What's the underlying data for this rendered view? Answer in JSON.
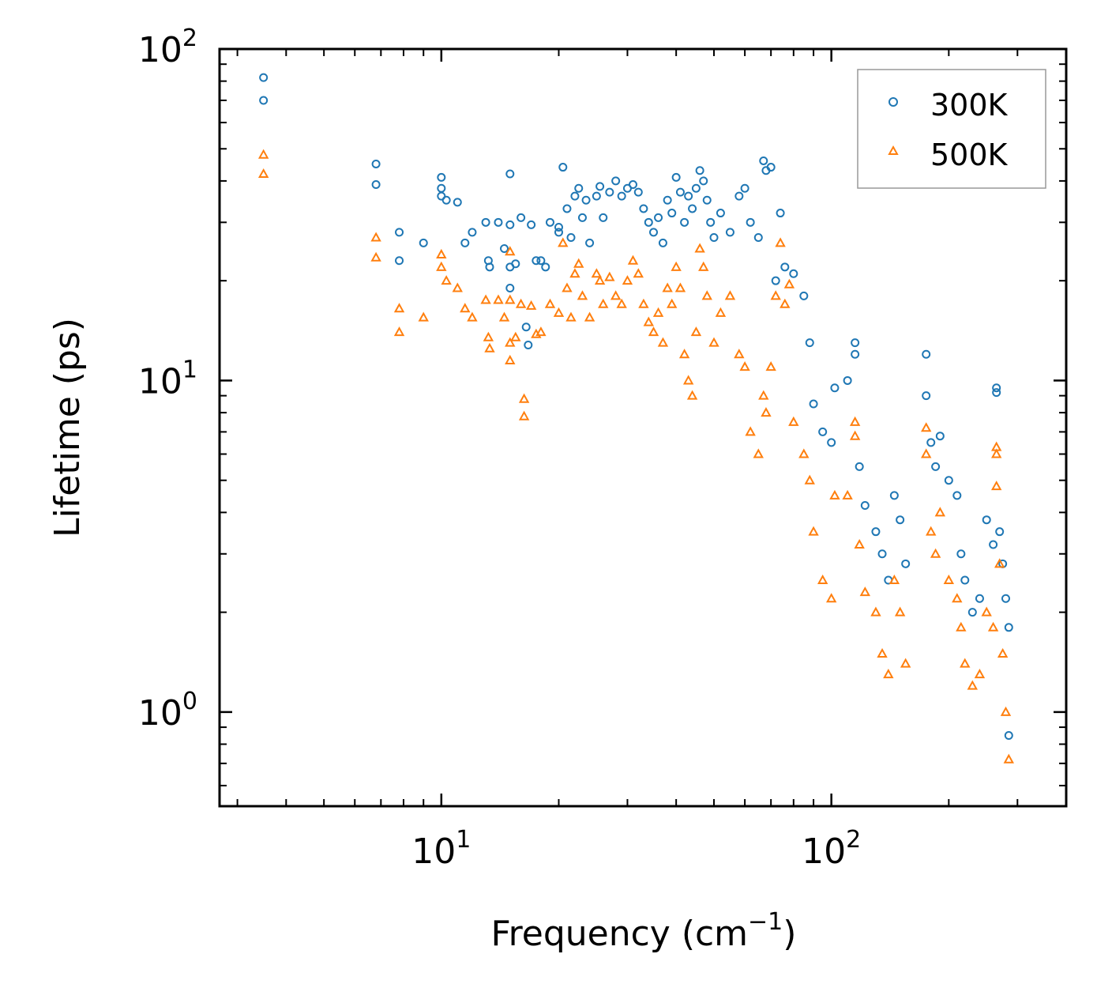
{
  "chart_data": {
    "type": "scatter",
    "title": "",
    "xlabel": "Frequency (cm",
    "xlabel_sup": "−1",
    "xlabel_tail": ")",
    "ylabel": "Lifetime (ps)",
    "xscale": "log",
    "yscale": "log",
    "xlim": [
      2.7,
      400
    ],
    "ylim": [
      0.52,
      100
    ],
    "x_ticks": [
      {
        "value": 10,
        "base": "10",
        "exp": "1"
      },
      {
        "value": 100,
        "base": "10",
        "exp": "2"
      }
    ],
    "y_ticks": [
      {
        "value": 1,
        "base": "10",
        "exp": "0"
      },
      {
        "value": 10,
        "base": "10",
        "exp": "1"
      },
      {
        "value": 100,
        "base": "10",
        "exp": "2"
      }
    ],
    "legend": {
      "position": "top-right"
    },
    "series": [
      {
        "name": "300K",
        "marker": "circle",
        "color": "#1f77b4",
        "points": [
          [
            3.5,
            82
          ],
          [
            3.5,
            70
          ],
          [
            6.8,
            45
          ],
          [
            6.8,
            39
          ],
          [
            7.8,
            28
          ],
          [
            7.8,
            23
          ],
          [
            9,
            26
          ],
          [
            10,
            41
          ],
          [
            10,
            38
          ],
          [
            10,
            36
          ],
          [
            10.3,
            35
          ],
          [
            11,
            34.5
          ],
          [
            11.5,
            26
          ],
          [
            12,
            28
          ],
          [
            13,
            30
          ],
          [
            13.2,
            23
          ],
          [
            13.3,
            22
          ],
          [
            14,
            30
          ],
          [
            14.5,
            25
          ],
          [
            15,
            42
          ],
          [
            15,
            29.5
          ],
          [
            15,
            22
          ],
          [
            15,
            19
          ],
          [
            15.5,
            22.5
          ],
          [
            16,
            31
          ],
          [
            16.5,
            14.5
          ],
          [
            16.7,
            12.8
          ],
          [
            17,
            29.5
          ],
          [
            17.5,
            23
          ],
          [
            18,
            23
          ],
          [
            18.5,
            22
          ],
          [
            19,
            30
          ],
          [
            20,
            29
          ],
          [
            20,
            28
          ],
          [
            20.5,
            44
          ],
          [
            21,
            33
          ],
          [
            21.5,
            27
          ],
          [
            22,
            36
          ],
          [
            22.5,
            38
          ],
          [
            23,
            31
          ],
          [
            23.5,
            35
          ],
          [
            24,
            26
          ],
          [
            25,
            36
          ],
          [
            25.5,
            38.5
          ],
          [
            26,
            31
          ],
          [
            27,
            37
          ],
          [
            28,
            40
          ],
          [
            29,
            36
          ],
          [
            30,
            38
          ],
          [
            31,
            39
          ],
          [
            32,
            37
          ],
          [
            33,
            33
          ],
          [
            34,
            30
          ],
          [
            35,
            28
          ],
          [
            36,
            31
          ],
          [
            37,
            26
          ],
          [
            38,
            35
          ],
          [
            39,
            32
          ],
          [
            40,
            41
          ],
          [
            41,
            37
          ],
          [
            42,
            30
          ],
          [
            43,
            36
          ],
          [
            44,
            33
          ],
          [
            45,
            38
          ],
          [
            46,
            43
          ],
          [
            47,
            40
          ],
          [
            48,
            35
          ],
          [
            49,
            30
          ],
          [
            50,
            27
          ],
          [
            52,
            32
          ],
          [
            55,
            28
          ],
          [
            58,
            36
          ],
          [
            60,
            38
          ],
          [
            62,
            30
          ],
          [
            65,
            27
          ],
          [
            67,
            46
          ],
          [
            68,
            43
          ],
          [
            70,
            44
          ],
          [
            72,
            20
          ],
          [
            74,
            32
          ],
          [
            76,
            22
          ],
          [
            80,
            21
          ],
          [
            85,
            18
          ],
          [
            88,
            13
          ],
          [
            90,
            8.5
          ],
          [
            95,
            7
          ],
          [
            100,
            6.5
          ],
          [
            102,
            9.5
          ],
          [
            110,
            10
          ],
          [
            115,
            13
          ],
          [
            115,
            12
          ],
          [
            118,
            5.5
          ],
          [
            122,
            4.2
          ],
          [
            130,
            3.5
          ],
          [
            135,
            3.0
          ],
          [
            140,
            2.5
          ],
          [
            145,
            4.5
          ],
          [
            150,
            3.8
          ],
          [
            155,
            2.8
          ],
          [
            175,
            12
          ],
          [
            175,
            9
          ],
          [
            180,
            6.5
          ],
          [
            185,
            5.5
          ],
          [
            190,
            6.8
          ],
          [
            200,
            5
          ],
          [
            210,
            4.5
          ],
          [
            215,
            3
          ],
          [
            220,
            2.5
          ],
          [
            230,
            2.0
          ],
          [
            240,
            2.2
          ],
          [
            250,
            3.8
          ],
          [
            260,
            3.2
          ],
          [
            265,
            9.5
          ],
          [
            265,
            9.2
          ],
          [
            270,
            3.5
          ],
          [
            275,
            2.8
          ],
          [
            280,
            2.2
          ],
          [
            285,
            1.8
          ],
          [
            285,
            0.85
          ]
        ]
      },
      {
        "name": "500K",
        "marker": "triangle",
        "color": "#ff7f0e",
        "points": [
          [
            3.5,
            48
          ],
          [
            3.5,
            42
          ],
          [
            6.8,
            27
          ],
          [
            6.8,
            23.5
          ],
          [
            7.8,
            16.5
          ],
          [
            7.8,
            14
          ],
          [
            9,
            15.5
          ],
          [
            10,
            24
          ],
          [
            10,
            22
          ],
          [
            10.3,
            20
          ],
          [
            11,
            19
          ],
          [
            11.5,
            16.5
          ],
          [
            12,
            15.5
          ],
          [
            13,
            17.5
          ],
          [
            13.2,
            13.5
          ],
          [
            13.3,
            12.5
          ],
          [
            14,
            17.5
          ],
          [
            14.5,
            15.5
          ],
          [
            15,
            24.5
          ],
          [
            15,
            17.5
          ],
          [
            15,
            13
          ],
          [
            15,
            11.5
          ],
          [
            15.5,
            13.5
          ],
          [
            16,
            17
          ],
          [
            16.3,
            8.8
          ],
          [
            16.3,
            7.8
          ],
          [
            17,
            16.8
          ],
          [
            17.5,
            13.8
          ],
          [
            18,
            14
          ],
          [
            19,
            17
          ],
          [
            20,
            16
          ],
          [
            20.5,
            26
          ],
          [
            21,
            19
          ],
          [
            21.5,
            15.5
          ],
          [
            22,
            21
          ],
          [
            22.5,
            22.5
          ],
          [
            23,
            18
          ],
          [
            24,
            15.5
          ],
          [
            25,
            21
          ],
          [
            25.5,
            20
          ],
          [
            26,
            17
          ],
          [
            27,
            20.5
          ],
          [
            28,
            18
          ],
          [
            29,
            17
          ],
          [
            30,
            20
          ],
          [
            31,
            23
          ],
          [
            32,
            21
          ],
          [
            33,
            17
          ],
          [
            34,
            15
          ],
          [
            35,
            14
          ],
          [
            36,
            16
          ],
          [
            37,
            13
          ],
          [
            38,
            19
          ],
          [
            39,
            17
          ],
          [
            40,
            22
          ],
          [
            41,
            19
          ],
          [
            42,
            12
          ],
          [
            43,
            10
          ],
          [
            44,
            9
          ],
          [
            45,
            14
          ],
          [
            46,
            25
          ],
          [
            47,
            22
          ],
          [
            48,
            18
          ],
          [
            50,
            13
          ],
          [
            52,
            16
          ],
          [
            55,
            18
          ],
          [
            58,
            12
          ],
          [
            60,
            11
          ],
          [
            62,
            7
          ],
          [
            65,
            6
          ],
          [
            67,
            9
          ],
          [
            68,
            8
          ],
          [
            70,
            11
          ],
          [
            72,
            18
          ],
          [
            74,
            26
          ],
          [
            76,
            17
          ],
          [
            78,
            19.5
          ],
          [
            80,
            7.5
          ],
          [
            85,
            6
          ],
          [
            88,
            5
          ],
          [
            90,
            3.5
          ],
          [
            95,
            2.5
          ],
          [
            100,
            2.2
          ],
          [
            102,
            4.5
          ],
          [
            110,
            4.5
          ],
          [
            115,
            7.5
          ],
          [
            115,
            6.8
          ],
          [
            118,
            3.2
          ],
          [
            122,
            2.3
          ],
          [
            130,
            2.0
          ],
          [
            135,
            1.5
          ],
          [
            140,
            1.3
          ],
          [
            145,
            2.5
          ],
          [
            150,
            2.0
          ],
          [
            155,
            1.4
          ],
          [
            175,
            7.2
          ],
          [
            175,
            6.0
          ],
          [
            180,
            3.5
          ],
          [
            185,
            3.0
          ],
          [
            190,
            4.0
          ],
          [
            200,
            2.5
          ],
          [
            210,
            2.2
          ],
          [
            215,
            1.8
          ],
          [
            220,
            1.4
          ],
          [
            230,
            1.2
          ],
          [
            240,
            1.3
          ],
          [
            250,
            2.0
          ],
          [
            260,
            1.8
          ],
          [
            265,
            6.3
          ],
          [
            265,
            6.0
          ],
          [
            265,
            4.8
          ],
          [
            270,
            2.8
          ],
          [
            275,
            1.5
          ],
          [
            280,
            1.0
          ],
          [
            285,
            0.72
          ]
        ]
      }
    ]
  }
}
